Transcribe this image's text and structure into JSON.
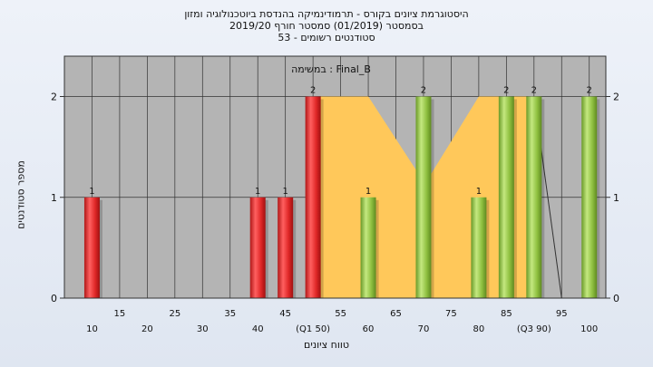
{
  "chart_data": {
    "type": "bar",
    "title_lines": [
      "היסטוגרמת ציונים בקורס - תרמודינמיקה בהנדסת ביוטכנולוגיה ומזון",
      "בסמסטר  (01/2019)  סמסטר חורף 2019/20",
      "סטודנטים רשומים - 53"
    ],
    "subtitle": "במשימה : Final_B",
    "xlabel": "טווח ציונים",
    "ylabel": "מספר סטודנטים",
    "ylim": [
      0,
      2.4
    ],
    "xlim": [
      5,
      103
    ],
    "y_ticks": [
      0,
      1,
      2
    ],
    "x_ticks_top": [
      15,
      25,
      35,
      45,
      55,
      65,
      75,
      85,
      95
    ],
    "x_ticks_bottom": [
      {
        "value": 10,
        "label": "10"
      },
      {
        "value": 20,
        "label": "20"
      },
      {
        "value": 30,
        "label": "30"
      },
      {
        "value": 40,
        "label": "40"
      },
      {
        "value": 50,
        "label": "(Q1 50)"
      },
      {
        "value": 60,
        "label": "60"
      },
      {
        "value": 70,
        "label": "70"
      },
      {
        "value": 80,
        "label": "80"
      },
      {
        "value": 90,
        "label": "(Q3 90)"
      },
      {
        "value": 100,
        "label": "100"
      }
    ],
    "bars": [
      {
        "x": 10,
        "value": 1,
        "color": "red"
      },
      {
        "x": 40,
        "value": 1,
        "color": "red"
      },
      {
        "x": 45,
        "value": 1,
        "color": "red"
      },
      {
        "x": 50,
        "value": 2,
        "color": "red"
      },
      {
        "x": 60,
        "value": 1,
        "color": "green"
      },
      {
        "x": 70,
        "value": 2,
        "color": "green"
      },
      {
        "x": 80,
        "value": 1,
        "color": "green"
      },
      {
        "x": 85,
        "value": 2,
        "color": "green"
      },
      {
        "x": 90,
        "value": 2,
        "color": "green"
      },
      {
        "x": 100,
        "value": 2,
        "color": "green"
      }
    ],
    "band": [
      [
        50,
        2
      ],
      [
        60,
        2
      ],
      [
        69.5,
        1.2
      ],
      [
        70,
        1.15
      ],
      [
        71,
        1.2
      ],
      [
        80,
        2
      ],
      [
        90,
        2
      ],
      [
        90,
        0
      ],
      [
        50,
        0
      ]
    ],
    "trend_line": [
      [
        90,
        2
      ],
      [
        95,
        0
      ]
    ],
    "grid": true,
    "colors": {
      "plot_bg": "#b4b4b4",
      "band": "#ffc85a",
      "red": "#e03030",
      "green": "#8fc040"
    }
  }
}
